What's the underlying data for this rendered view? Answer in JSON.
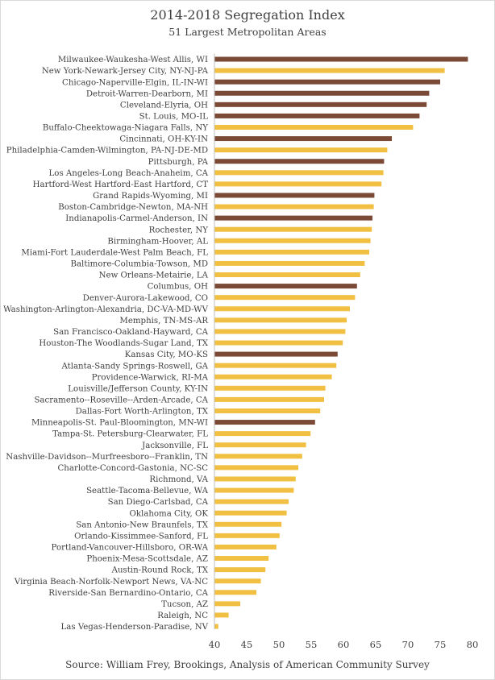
{
  "colors": {
    "highlight": "#7b4a36",
    "default": "#f1c043"
  },
  "chart_data": {
    "type": "bar",
    "orientation": "horizontal",
    "title": "2014-2018 Segregation Index",
    "subtitle": "51 Largest Metropolitan Areas",
    "source": "Source: William Frey, Brookings, Analysis of American Community Survey",
    "xlim": [
      40,
      80
    ],
    "xticks": [
      40,
      45,
      50,
      55,
      60,
      65,
      70,
      75,
      80
    ],
    "grid": false,
    "categories": [
      "Milwaukee-Waukesha-West Allis, WI",
      "New York-Newark-Jersey City, NY-NJ-PA",
      "Chicago-Naperville-Elgin, IL-IN-WI",
      "Detroit-Warren-Dearborn, MI",
      "Cleveland-Elyria, OH",
      "St. Louis, MO-IL",
      "Buffalo-Cheektowaga-Niagara Falls, NY",
      "Cincinnati, OH-KY-IN",
      "Philadelphia-Camden-Wilmington, PA-NJ-DE-MD",
      "Pittsburgh, PA",
      "Los Angeles-Long Beach-Anaheim, CA",
      "Hartford-West Hartford-East Hartford, CT",
      "Grand Rapids-Wyoming, MI",
      "Boston-Cambridge-Newton, MA-NH",
      "Indianapolis-Carmel-Anderson, IN",
      "Rochester, NY",
      "Birmingham-Hoover, AL",
      "Miami-Fort Lauderdale-West Palm Beach, FL",
      "Baltimore-Columbia-Towson, MD",
      "New Orleans-Metairie, LA",
      "Columbus, OH",
      "Denver-Aurora-Lakewood, CO",
      "Washington-Arlington-Alexandria, DC-VA-MD-WV",
      "Memphis, TN-MS-AR",
      "San Francisco-Oakland-Hayward, CA",
      "Houston-The Woodlands-Sugar Land, TX",
      "Kansas City, MO-KS",
      "Atlanta-Sandy Springs-Roswell, GA",
      "Providence-Warwick, RI-MA",
      "Louisville/Jefferson County, KY-IN",
      "Sacramento--Roseville--Arden-Arcade, CA",
      "Dallas-Fort Worth-Arlington, TX",
      "Minneapolis-St. Paul-Bloomington, MN-WI",
      "Tampa-St. Petersburg-Clearwater, FL",
      "Jacksonville, FL",
      "Nashville-Davidson--Murfreesboro--Franklin, TN",
      "Charlotte-Concord-Gastonia, NC-SC",
      "Richmond, VA",
      "Seattle-Tacoma-Bellevue, WA",
      "San Diego-Carlsbad, CA",
      "Oklahoma City, OK",
      "San Antonio-New Braunfels, TX",
      "Orlando-Kissimmee-Sanford, FL",
      "Portland-Vancouver-Hillsboro, OR-WA",
      "Phoenix-Mesa-Scottsdale, AZ",
      "Austin-Round Rock, TX",
      "Virginia Beach-Norfolk-Newport News, VA-NC",
      "Riverside-San Bernardino-Ontario, CA",
      "Tucson, AZ",
      "Raleigh, NC",
      "Las Vegas-Henderson-Paradise, NV"
    ],
    "values": [
      79.3,
      75.7,
      75.0,
      73.3,
      72.9,
      71.8,
      70.8,
      67.5,
      66.8,
      66.3,
      66.2,
      65.9,
      64.8,
      64.7,
      64.5,
      64.4,
      64.2,
      64.0,
      63.3,
      62.6,
      62.1,
      61.8,
      61.0,
      60.5,
      60.3,
      59.9,
      59.1,
      58.9,
      58.2,
      57.2,
      57.0,
      56.4,
      55.6,
      54.9,
      54.2,
      53.6,
      53.0,
      52.6,
      52.3,
      51.5,
      51.2,
      50.4,
      50.1,
      49.6,
      48.4,
      47.9,
      47.2,
      46.5,
      44.0,
      42.2,
      40.6
    ],
    "highlighted": [
      "Milwaukee-Waukesha-West Allis, WI",
      "Chicago-Naperville-Elgin, IL-IN-WI",
      "Detroit-Warren-Dearborn, MI",
      "Cleveland-Elyria, OH",
      "St. Louis, MO-IL",
      "Cincinnati, OH-KY-IN",
      "Pittsburgh, PA",
      "Grand Rapids-Wyoming, MI",
      "Indianapolis-Carmel-Anderson, IN",
      "Columbus, OH",
      "Kansas City, MO-KS",
      "Minneapolis-St. Paul-Bloomington, MN-WI"
    ]
  }
}
